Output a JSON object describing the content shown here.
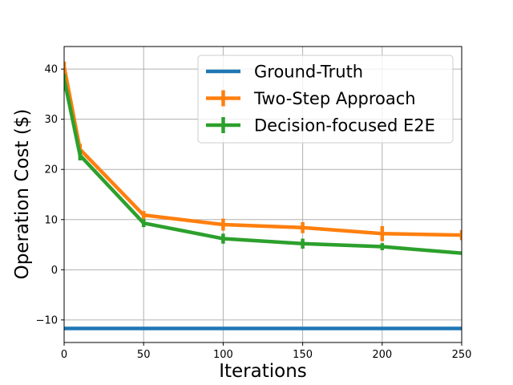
{
  "chart_data": {
    "type": "line",
    "title": "",
    "xlabel": "Iterations",
    "ylabel": "Operation Cost ($)",
    "xlim": [
      0,
      250
    ],
    "ylim": [
      -14.5,
      44.5
    ],
    "grid": true,
    "xticks": [
      0,
      50,
      100,
      150,
      200,
      250
    ],
    "xtick_labels": [
      "0",
      "50",
      "100",
      "150",
      "200",
      "250"
    ],
    "yticks": [
      -10,
      0,
      10,
      20,
      30,
      40
    ],
    "ytick_labels": [
      "−10",
      "0",
      "10",
      "20",
      "30",
      "40"
    ],
    "legend_position": "top-right",
    "series": [
      {
        "name": "Ground-Truth",
        "color": "#1f77b4",
        "x": [
          0,
          250
        ],
        "y": [
          -11.7,
          -11.7
        ],
        "errors": []
      },
      {
        "name": "Two-Step Approach",
        "color": "#ff7f0e",
        "x": [
          0,
          10,
          50,
          100,
          150,
          200,
          250
        ],
        "y": [
          40.5,
          24.0,
          10.9,
          9.0,
          8.4,
          7.2,
          6.9
        ],
        "errors": [
          1.0,
          1.1,
          0.8,
          1.2,
          1.1,
          1.5,
          1.0
        ]
      },
      {
        "name": "Decision-focused E2E",
        "color": "#2ca02c",
        "x": [
          0,
          10,
          50,
          100,
          150,
          200,
          250
        ],
        "y": [
          38.0,
          22.8,
          9.3,
          6.2,
          5.2,
          4.6,
          3.3
        ],
        "errors": [
          1.0,
          1.0,
          0.8,
          1.0,
          1.0,
          0.7,
          0.2
        ]
      }
    ]
  }
}
